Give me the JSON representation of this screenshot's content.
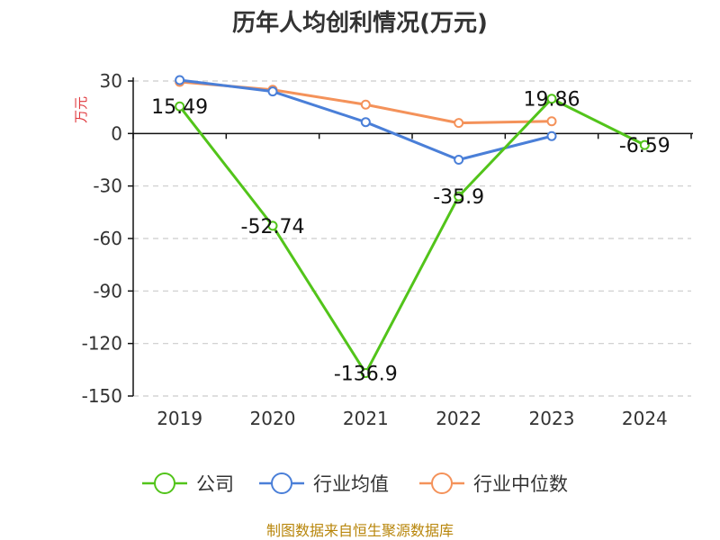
{
  "chart_data": {
    "type": "line",
    "title": "历年人均创利情况(万元)",
    "ylabel": "万元",
    "xlabel": "",
    "categories": [
      "2019",
      "2020",
      "2021",
      "2022",
      "2023",
      "2024"
    ],
    "ylim": [
      -150,
      30
    ],
    "yticks": [
      30,
      0,
      -30,
      -60,
      -90,
      -120,
      -150
    ],
    "grid": true,
    "legend_position": "bottom",
    "series": [
      {
        "name": "公司",
        "color": "#52c41a",
        "values": [
          15.49,
          -52.74,
          -136.9,
          -35.9,
          19.86,
          -6.59
        ],
        "labels": [
          "15.49",
          "-52.74",
          "-136.9",
          "-35.9",
          "19.86",
          "-6.59"
        ]
      },
      {
        "name": "行业均值",
        "color": "#4a7fd8",
        "values": [
          30.5,
          24.0,
          6.5,
          -15.0,
          -1.5,
          null
        ]
      },
      {
        "name": "行业中位数",
        "color": "#f4925a",
        "values": [
          29.5,
          25.0,
          16.5,
          6.0,
          7.0,
          null
        ]
      }
    ]
  },
  "source_text": "制图数据来自恒生聚源数据库"
}
